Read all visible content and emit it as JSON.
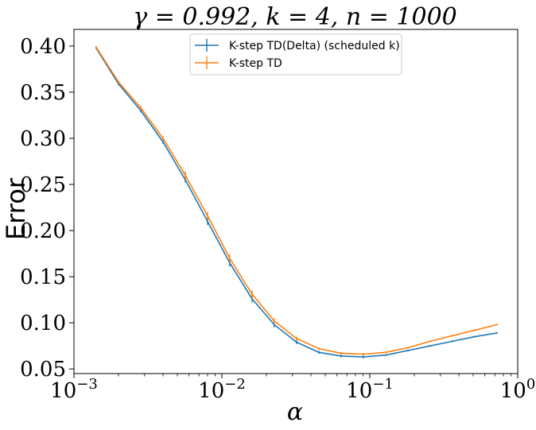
{
  "chart_data": {
    "type": "line",
    "title": "γ = 0.992, k = 4, n = 1000",
    "xlabel": "α",
    "ylabel": "Error",
    "xscale": "log",
    "xlim": [
      0.001,
      1
    ],
    "ylim": [
      0.045,
      0.418
    ],
    "x_ticks": [
      {
        "value": 0.001,
        "base": "10",
        "exp": "−3"
      },
      {
        "value": 0.01,
        "base": "10",
        "exp": "−2"
      },
      {
        "value": 0.1,
        "base": "10",
        "exp": "−1"
      },
      {
        "value": 1,
        "base": "10",
        "exp": "0"
      }
    ],
    "y_ticks": [
      "0.05",
      "0.10",
      "0.15",
      "0.20",
      "0.25",
      "0.30",
      "0.35",
      "0.40"
    ],
    "legend_position": "top-center",
    "x": [
      0.00141,
      0.002,
      0.00283,
      0.004,
      0.00566,
      0.008,
      0.0113,
      0.016,
      0.0226,
      0.032,
      0.0453,
      0.064,
      0.0905,
      0.128,
      0.181,
      0.256,
      0.362,
      0.512,
      0.724
    ],
    "series": [
      {
        "name": "K-step TD(Delta) (scheduled k)",
        "color": "#1f77b4",
        "values": [
          0.398,
          0.359,
          0.33,
          0.296,
          0.255,
          0.21,
          0.165,
          0.126,
          0.098,
          0.079,
          0.068,
          0.064,
          0.063,
          0.065,
          0.07,
          0.075,
          0.08,
          0.085,
          0.089
        ],
        "err": [
          0.001,
          0.0015,
          0.002,
          0.002,
          0.003,
          0.004,
          0.004,
          0.004,
          0.003,
          0.002,
          0.0015,
          0.0015,
          0.0015,
          0.001,
          0.001,
          0.001,
          0.001,
          0.001,
          0.001
        ]
      },
      {
        "name": "K-step TD",
        "color": "#ff7f0e",
        "values": [
          0.399,
          0.361,
          0.333,
          0.3,
          0.26,
          0.216,
          0.17,
          0.131,
          0.102,
          0.083,
          0.072,
          0.067,
          0.066,
          0.068,
          0.073,
          0.08,
          0.086,
          0.092,
          0.098
        ],
        "err": [
          0.001,
          0.0015,
          0.002,
          0.002,
          0.004,
          0.004,
          0.004,
          0.004,
          0.003,
          0.002,
          0.0015,
          0.0015,
          0.0015,
          0.001,
          0.001,
          0.001,
          0.001,
          0.001,
          0.001
        ]
      }
    ]
  }
}
